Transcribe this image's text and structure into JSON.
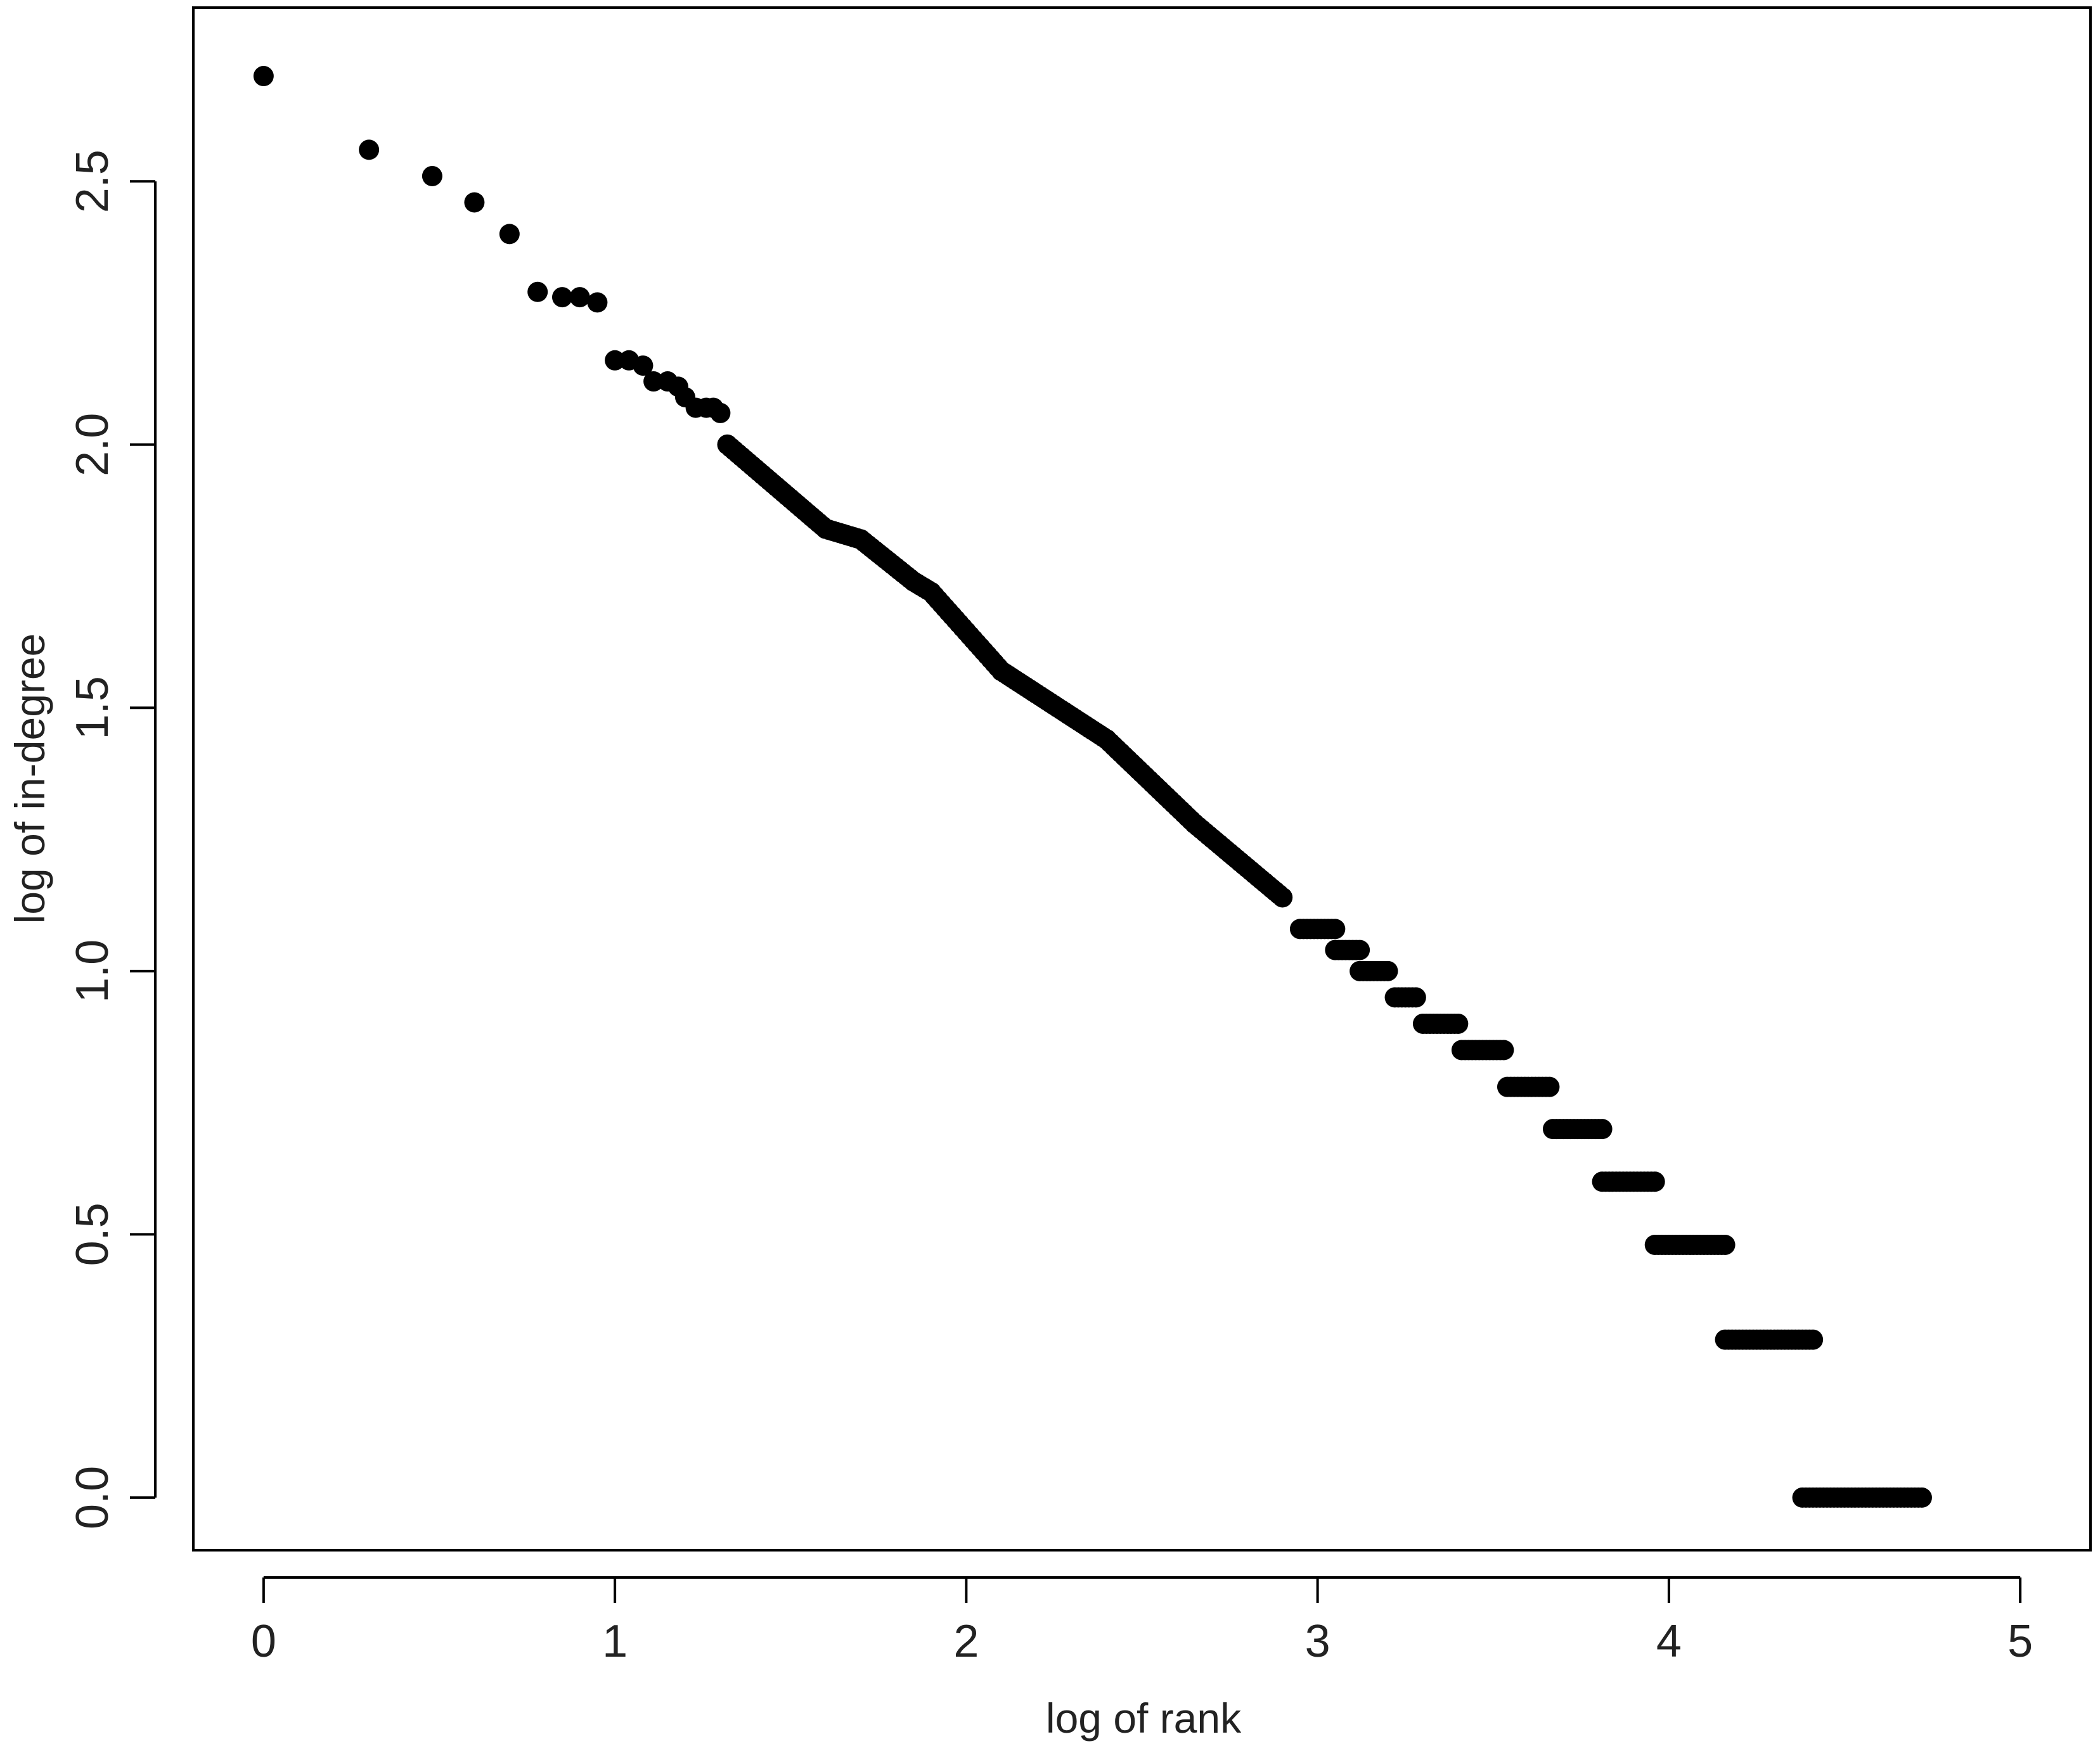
{
  "chart_data": {
    "type": "scatter",
    "title": "",
    "xlabel": "log of rank",
    "ylabel": "log of in-degree",
    "xlim": [
      -0.2,
      5.2
    ],
    "ylim": [
      -0.1,
      2.83
    ],
    "xticks": [
      0,
      1,
      2,
      3,
      4,
      5
    ],
    "xtick_labels": [
      "0",
      "1",
      "2",
      "3",
      "4",
      "5"
    ],
    "yticks": [
      0.0,
      0.5,
      1.0,
      1.5,
      2.0,
      2.5
    ],
    "ytick_labels": [
      "0.0",
      "0.5",
      "1.0",
      "1.5",
      "2.0",
      "2.5"
    ],
    "grid": false,
    "legend": "none",
    "marker_color": "#000000",
    "points": [
      [
        0.0,
        2.7
      ],
      [
        0.3,
        2.56
      ],
      [
        0.48,
        2.51
      ],
      [
        0.6,
        2.46
      ],
      [
        0.7,
        2.4
      ],
      [
        0.78,
        2.29
      ],
      [
        0.85,
        2.28
      ],
      [
        0.9,
        2.28
      ],
      [
        0.95,
        2.27
      ],
      [
        1.0,
        2.16
      ],
      [
        1.04,
        2.16
      ],
      [
        1.08,
        2.15
      ],
      [
        1.11,
        2.12
      ],
      [
        1.15,
        2.12
      ],
      [
        1.18,
        2.11
      ],
      [
        1.2,
        2.09
      ],
      [
        1.23,
        2.07
      ],
      [
        1.26,
        2.07
      ],
      [
        1.28,
        2.07
      ],
      [
        1.3,
        2.06
      ]
    ],
    "continuous_segments": [
      {
        "x_start": 1.32,
        "x_end": 1.6,
        "y_start": 2.0,
        "y_end": 1.84
      },
      {
        "x_start": 1.6,
        "x_end": 1.7,
        "y_start": 1.84,
        "y_end": 1.82
      },
      {
        "x_start": 1.7,
        "x_end": 1.85,
        "y_start": 1.82,
        "y_end": 1.74
      },
      {
        "x_start": 1.85,
        "x_end": 1.9,
        "y_start": 1.74,
        "y_end": 1.72
      },
      {
        "x_start": 1.9,
        "x_end": 2.1,
        "y_start": 1.72,
        "y_end": 1.57
      },
      {
        "x_start": 2.1,
        "x_end": 2.4,
        "y_start": 1.57,
        "y_end": 1.44
      },
      {
        "x_start": 2.4,
        "x_end": 2.65,
        "y_start": 1.44,
        "y_end": 1.28
      },
      {
        "x_start": 2.65,
        "x_end": 2.9,
        "y_start": 1.28,
        "y_end": 1.14
      }
    ],
    "plateaus": [
      {
        "y": 1.08,
        "x_start": 2.95,
        "x_end": 3.05
      },
      {
        "y": 1.04,
        "x_start": 3.05,
        "x_end": 3.12
      },
      {
        "y": 1.0,
        "x_start": 3.12,
        "x_end": 3.2
      },
      {
        "y": 0.95,
        "x_start": 3.22,
        "x_end": 3.28
      },
      {
        "y": 0.9,
        "x_start": 3.3,
        "x_end": 3.4
      },
      {
        "y": 0.85,
        "x_start": 3.41,
        "x_end": 3.53
      },
      {
        "y": 0.78,
        "x_start": 3.54,
        "x_end": 3.66
      },
      {
        "y": 0.7,
        "x_start": 3.67,
        "x_end": 3.81
      },
      {
        "y": 0.6,
        "x_start": 3.81,
        "x_end": 3.96
      },
      {
        "y": 0.48,
        "x_start": 3.96,
        "x_end": 4.16
      },
      {
        "y": 0.3,
        "x_start": 4.16,
        "x_end": 4.41
      },
      {
        "y": 0.0,
        "x_start": 4.38,
        "x_end": 4.72
      }
    ]
  }
}
